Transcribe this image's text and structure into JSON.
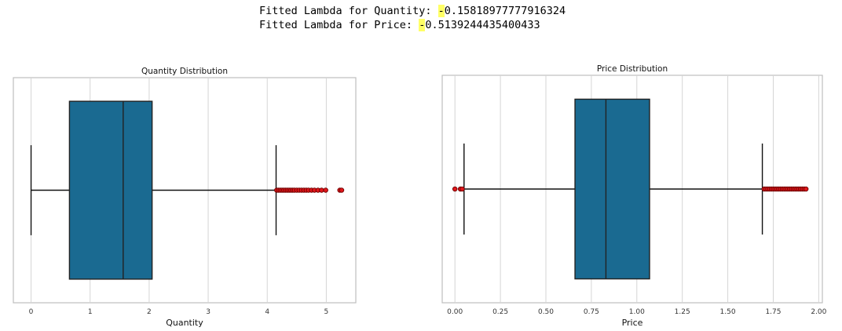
{
  "output": {
    "lines": [
      {
        "prefix": "Fitted Lambda for Quantity: ",
        "sign": "-",
        "value": "0.15818977777916324"
      },
      {
        "prefix": "Fitted Lambda for Price: ",
        "sign": "-",
        "value": "0.5139244435400433"
      }
    ],
    "highlight_color": "#ffff66"
  },
  "chart_data": [
    {
      "type": "box",
      "title": "Quantity Distribution",
      "xlabel": "Quantity",
      "ylabel": "",
      "xlim": [
        -0.3,
        5.5
      ],
      "xticks": [
        0,
        1,
        2,
        3,
        4,
        5
      ],
      "tick_labels": [
        "0",
        "1",
        "2",
        "3",
        "4",
        "5"
      ],
      "grid": true,
      "box_color": "#1a6a91",
      "flier_color": "#e0161a",
      "stats": {
        "whislo": 0.0,
        "q1": 0.65,
        "med": 1.56,
        "q3": 2.05,
        "whishi": 4.15
      },
      "outliers": [
        4.16,
        4.19,
        4.22,
        4.25,
        4.28,
        4.31,
        4.34,
        4.37,
        4.4,
        4.43,
        4.46,
        4.5,
        4.54,
        4.58,
        4.62,
        4.66,
        4.7,
        4.75,
        4.8,
        4.86,
        4.92,
        4.99,
        5.23,
        5.26
      ]
    },
    {
      "type": "box",
      "title": "Price Distribution",
      "xlabel": "Price",
      "ylabel": "",
      "xlim": [
        -0.07,
        2.02
      ],
      "xticks": [
        0.0,
        0.25,
        0.5,
        0.75,
        1.0,
        1.25,
        1.5,
        1.75,
        2.0
      ],
      "tick_labels": [
        "0.00",
        "0.25",
        "0.50",
        "0.75",
        "1.00",
        "1.25",
        "1.50",
        "1.75",
        "2.00"
      ],
      "grid": true,
      "box_color": "#1a6a91",
      "flier_color": "#e0161a",
      "stats": {
        "whislo": 0.05,
        "q1": 0.66,
        "med": 0.83,
        "q3": 1.07,
        "whishi": 1.69
      },
      "outliers": [
        0.0,
        0.03,
        0.04,
        1.7,
        1.71,
        1.72,
        1.73,
        1.74,
        1.75,
        1.76,
        1.77,
        1.78,
        1.79,
        1.8,
        1.81,
        1.82,
        1.83,
        1.84,
        1.85,
        1.86,
        1.87,
        1.88,
        1.89,
        1.9,
        1.91,
        1.92,
        1.93
      ]
    }
  ]
}
